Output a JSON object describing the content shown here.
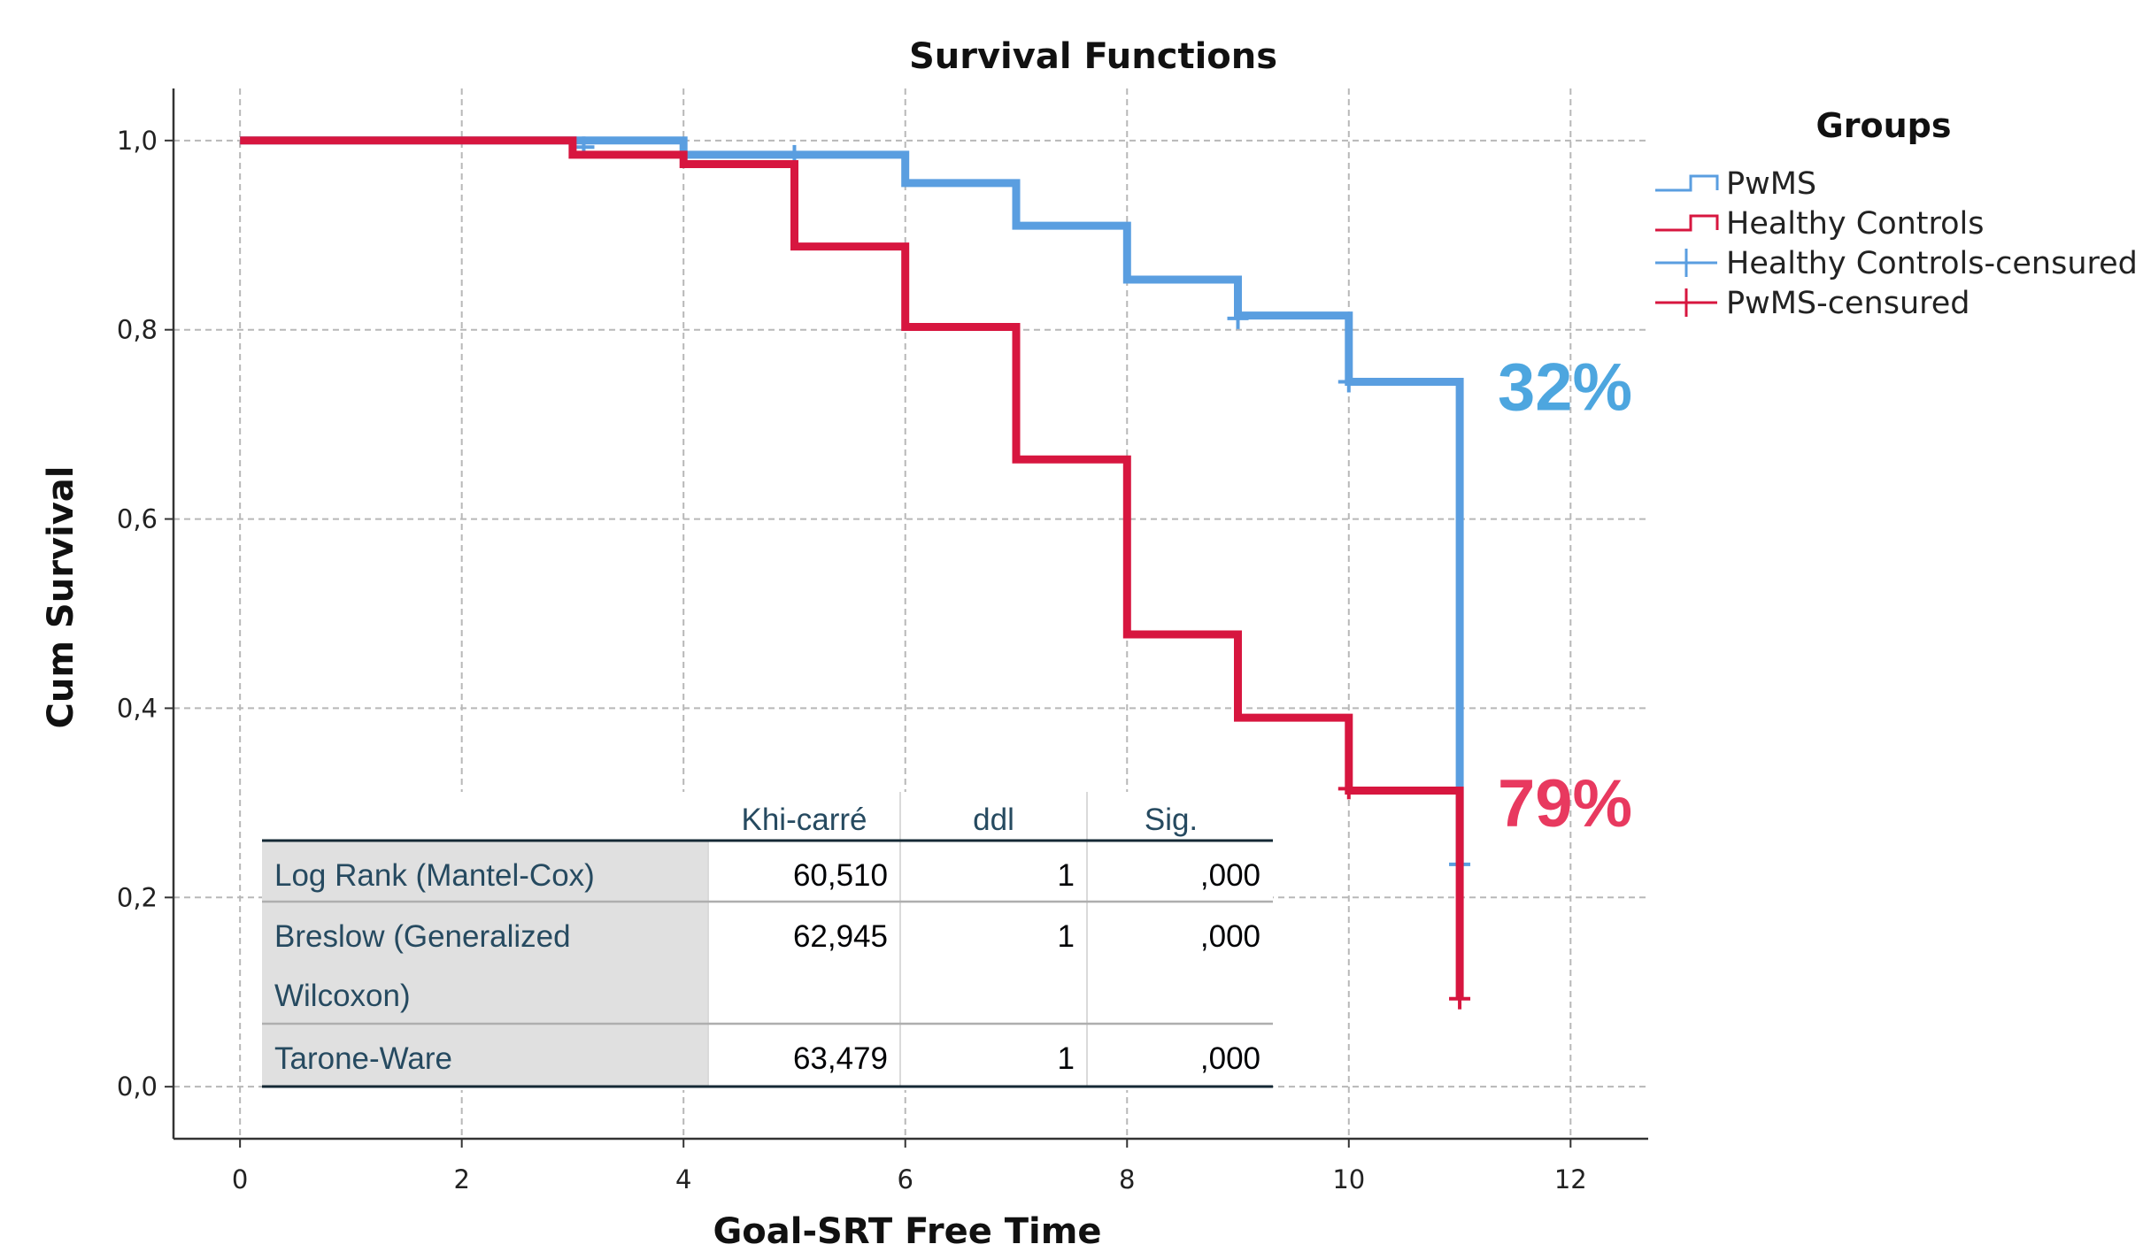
{
  "chart_data": {
    "type": "line",
    "title": "Survival Functions",
    "xlabel": "Goal-SRT Free Time",
    "ylabel": "Cum Survival",
    "xlim": [
      -0.6,
      12.7
    ],
    "ylim": [
      -0.055,
      1.055
    ],
    "x_ticks": [
      0,
      2,
      4,
      6,
      8,
      10,
      12
    ],
    "x_tick_labels": [
      "0",
      "2",
      "4",
      "6",
      "8",
      "10",
      "12"
    ],
    "y_ticks": [
      0.0,
      0.2,
      0.4,
      0.6,
      0.8,
      1.0
    ],
    "y_tick_labels": [
      "0,0",
      "0,2",
      "0,4",
      "0,6",
      "0,8",
      "1,0"
    ],
    "grid": true,
    "legend_title": "Groups",
    "legend_placement": "right",
    "legend": [
      {
        "label": "PwMS",
        "kind": "step",
        "color": "#5a9ee0"
      },
      {
        "label": "Healthy Controls",
        "kind": "step",
        "color": "#d7163f"
      },
      {
        "label": "Healthy Controls-censured",
        "kind": "cross",
        "color": "#5a9ee0"
      },
      {
        "label": "PwMS-censured",
        "kind": "cross",
        "color": "#d7163f"
      }
    ],
    "series": [
      {
        "name": "PwMS",
        "color": "#5a9ee0",
        "points": [
          [
            0,
            1.0
          ],
          [
            4,
            1.0
          ],
          [
            4,
            0.985
          ],
          [
            6,
            0.985
          ],
          [
            6,
            0.955
          ],
          [
            7,
            0.955
          ],
          [
            7,
            0.91
          ],
          [
            8,
            0.91
          ],
          [
            8,
            0.853
          ],
          [
            9,
            0.853
          ],
          [
            9,
            0.815
          ],
          [
            10,
            0.815
          ],
          [
            10,
            0.745
          ],
          [
            11,
            0.745
          ],
          [
            11,
            0.235
          ]
        ],
        "censored": [
          [
            3.1,
            0.993
          ],
          [
            5,
            0.984
          ],
          [
            9,
            0.812
          ],
          [
            10,
            0.745
          ],
          [
            11,
            0.235
          ]
        ]
      },
      {
        "name": "Healthy Controls",
        "color": "#d7163f",
        "points": [
          [
            0,
            1.0
          ],
          [
            3,
            1.0
          ],
          [
            3,
            0.985
          ],
          [
            4,
            0.985
          ],
          [
            4,
            0.975
          ],
          [
            5,
            0.975
          ],
          [
            5,
            0.888
          ],
          [
            6,
            0.888
          ],
          [
            6,
            0.803
          ],
          [
            7,
            0.803
          ],
          [
            7,
            0.663
          ],
          [
            8,
            0.663
          ],
          [
            8,
            0.478
          ],
          [
            9,
            0.478
          ],
          [
            9,
            0.39
          ],
          [
            10,
            0.39
          ],
          [
            10,
            0.313
          ],
          [
            11,
            0.313
          ],
          [
            11,
            0.093
          ]
        ],
        "censored": [
          [
            10,
            0.315
          ],
          [
            11,
            0.093
          ]
        ]
      }
    ],
    "annotations": [
      {
        "text": "32%",
        "color": "#4da6df",
        "x": 11.95,
        "y": 0.715
      },
      {
        "text": "79%",
        "color": "#e8395f",
        "x": 11.95,
        "y": 0.275
      }
    ],
    "table": {
      "headers": [
        "Khi-carré",
        "ddl",
        "Sig."
      ],
      "rows": [
        {
          "label_lines": [
            "Log Rank (Mantel-Cox)"
          ],
          "chi": "60,510",
          "ddl": "1",
          "sig": ",000"
        },
        {
          "label_lines": [
            "Breslow (Generalized",
            "Wilcoxon)"
          ],
          "chi": "62,945",
          "ddl": "1",
          "sig": ",000"
        },
        {
          "label_lines": [
            "Tarone-Ware"
          ],
          "chi": "63,479",
          "ddl": "1",
          "sig": ",000"
        }
      ]
    }
  }
}
